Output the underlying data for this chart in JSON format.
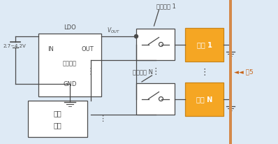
{
  "bg_color": "#deeaf5",
  "line_color": "#4a4a4a",
  "orange_fill": "#f5a623",
  "orange_border": "#c8841a",
  "white_fill": "#ffffff",
  "ldo_label_top": "LDO",
  "ldo_in": "IN",
  "ldo_out": "OUT",
  "ldo_line2": "线性电源",
  "ldo_gnd": "GND",
  "micro_line1": "微处",
  "micro_line2": "理器",
  "load1_label": "负载 1",
  "loadN_label": "负载 N",
  "switch1_label": "负载开关 1",
  "switchN_label": "负载开关 N",
  "voltage_label": "2.7~4.2V",
  "vout_label": "V",
  "vout_sub": "OUT",
  "fig5_label": "◄◄ 图5",
  "right_bar_color": "#c8651a",
  "right_bar_fill": "#f0f0f0",
  "dots3": "⋯",
  "dots_vert": "⋮"
}
